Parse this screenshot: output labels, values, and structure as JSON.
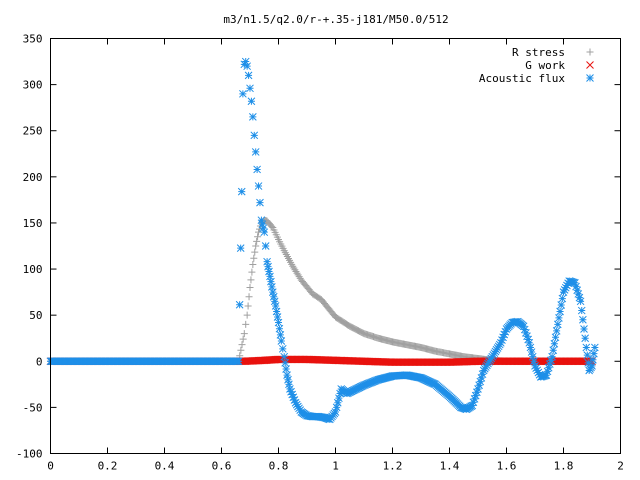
{
  "chart_data": {
    "type": "scatter",
    "title": "m3/n1.5/q2.0/r-+.35-j181/M50.0/512",
    "xlabel": "",
    "ylabel": "",
    "xlim": [
      0,
      2
    ],
    "ylim": [
      -100,
      350
    ],
    "xticks": [
      "0",
      "0.2",
      "0.4",
      "0.6",
      "0.8",
      "1",
      "1.2",
      "1.4",
      "1.6",
      "1.8",
      "2"
    ],
    "yticks": [
      "-100",
      "-50",
      "0",
      "50",
      "100",
      "150",
      "200",
      "250",
      "300",
      "350"
    ],
    "grid": false,
    "legend_position": "top-right",
    "series": [
      {
        "name": "R stress",
        "marker": "plus",
        "color": "#a0a0a0",
        "points": [
          [
            0.0,
            0
          ],
          [
            0.3,
            0
          ],
          [
            0.6,
            0
          ],
          [
            0.66,
            0
          ],
          [
            0.672,
            18
          ],
          [
            0.68,
            30
          ],
          [
            0.69,
            50
          ],
          [
            0.7,
            80
          ],
          [
            0.71,
            105
          ],
          [
            0.72,
            125
          ],
          [
            0.73,
            140
          ],
          [
            0.74,
            150
          ],
          [
            0.75,
            153
          ],
          [
            0.76,
            152
          ],
          [
            0.78,
            145
          ],
          [
            0.8,
            132
          ],
          [
            0.82,
            120
          ],
          [
            0.85,
            103
          ],
          [
            0.88,
            88
          ],
          [
            0.92,
            73
          ],
          [
            0.95,
            67
          ],
          [
            1.0,
            48
          ],
          [
            1.05,
            38
          ],
          [
            1.1,
            30
          ],
          [
            1.15,
            25
          ],
          [
            1.2,
            21
          ],
          [
            1.25,
            18
          ],
          [
            1.3,
            15
          ],
          [
            1.35,
            11
          ],
          [
            1.4,
            8
          ],
          [
            1.45,
            5
          ],
          [
            1.5,
            3
          ],
          [
            1.55,
            1
          ],
          [
            1.6,
            0
          ],
          [
            1.7,
            0
          ],
          [
            1.8,
            0
          ],
          [
            1.85,
            0
          ],
          [
            1.9,
            0
          ]
        ]
      },
      {
        "name": "G work",
        "marker": "cross",
        "color": "#e8120e",
        "points": [
          [
            0.0,
            0
          ],
          [
            0.6,
            0
          ],
          [
            0.68,
            0
          ],
          [
            0.75,
            1
          ],
          [
            0.8,
            2
          ],
          [
            0.9,
            2
          ],
          [
            1.0,
            1
          ],
          [
            1.1,
            0
          ],
          [
            1.2,
            -1
          ],
          [
            1.3,
            -1
          ],
          [
            1.4,
            -1
          ],
          [
            1.5,
            0
          ],
          [
            1.6,
            0
          ],
          [
            1.7,
            0
          ],
          [
            1.8,
            0
          ],
          [
            1.9,
            0
          ]
        ]
      },
      {
        "name": "Acoustic flux",
        "marker": "star",
        "color": "#1e8fe8",
        "points": [
          [
            0.0,
            0
          ],
          [
            0.3,
            0
          ],
          [
            0.6,
            0
          ],
          [
            0.66,
            0
          ],
          [
            0.671,
            184
          ],
          [
            0.675,
            290
          ],
          [
            0.68,
            322
          ],
          [
            0.685,
            325
          ],
          [
            0.69,
            320
          ],
          [
            0.695,
            310
          ],
          [
            0.7,
            296
          ],
          [
            0.705,
            282
          ],
          [
            0.71,
            265
          ],
          [
            0.715,
            245
          ],
          [
            0.72,
            227
          ],
          [
            0.725,
            208
          ],
          [
            0.73,
            190
          ],
          [
            0.735,
            172
          ],
          [
            0.74,
            153
          ],
          [
            0.75,
            140
          ],
          [
            0.755,
            125
          ],
          [
            0.76,
            108
          ],
          [
            0.77,
            92
          ],
          [
            0.78,
            75
          ],
          [
            0.79,
            60
          ],
          [
            0.8,
            42
          ],
          [
            0.81,
            22
          ],
          [
            0.82,
            5
          ],
          [
            0.83,
            -15
          ],
          [
            0.84,
            -30
          ],
          [
            0.86,
            -45
          ],
          [
            0.88,
            -55
          ],
          [
            0.9,
            -59
          ],
          [
            0.92,
            -60
          ],
          [
            0.94,
            -60
          ],
          [
            0.96,
            -61
          ],
          [
            0.98,
            -63
          ],
          [
            1.0,
            -55
          ],
          [
            1.02,
            -30
          ],
          [
            1.04,
            -35
          ],
          [
            1.06,
            -32
          ],
          [
            1.1,
            -26
          ],
          [
            1.15,
            -20
          ],
          [
            1.2,
            -16
          ],
          [
            1.25,
            -15
          ],
          [
            1.3,
            -18
          ],
          [
            1.35,
            -25
          ],
          [
            1.4,
            -38
          ],
          [
            1.44,
            -50
          ],
          [
            1.46,
            -52
          ],
          [
            1.48,
            -48
          ],
          [
            1.5,
            -30
          ],
          [
            1.52,
            -10
          ],
          [
            1.55,
            5
          ],
          [
            1.58,
            20
          ],
          [
            1.6,
            35
          ],
          [
            1.62,
            42
          ],
          [
            1.64,
            43
          ],
          [
            1.66,
            38
          ],
          [
            1.68,
            20
          ],
          [
            1.7,
            -5
          ],
          [
            1.72,
            -17
          ],
          [
            1.74,
            -15
          ],
          [
            1.76,
            5
          ],
          [
            1.78,
            40
          ],
          [
            1.8,
            75
          ],
          [
            1.82,
            87
          ],
          [
            1.84,
            85
          ],
          [
            1.86,
            65
          ],
          [
            1.88,
            15
          ],
          [
            1.89,
            -10
          ],
          [
            1.9,
            -5
          ],
          [
            1.91,
            15
          ]
        ]
      }
    ]
  }
}
